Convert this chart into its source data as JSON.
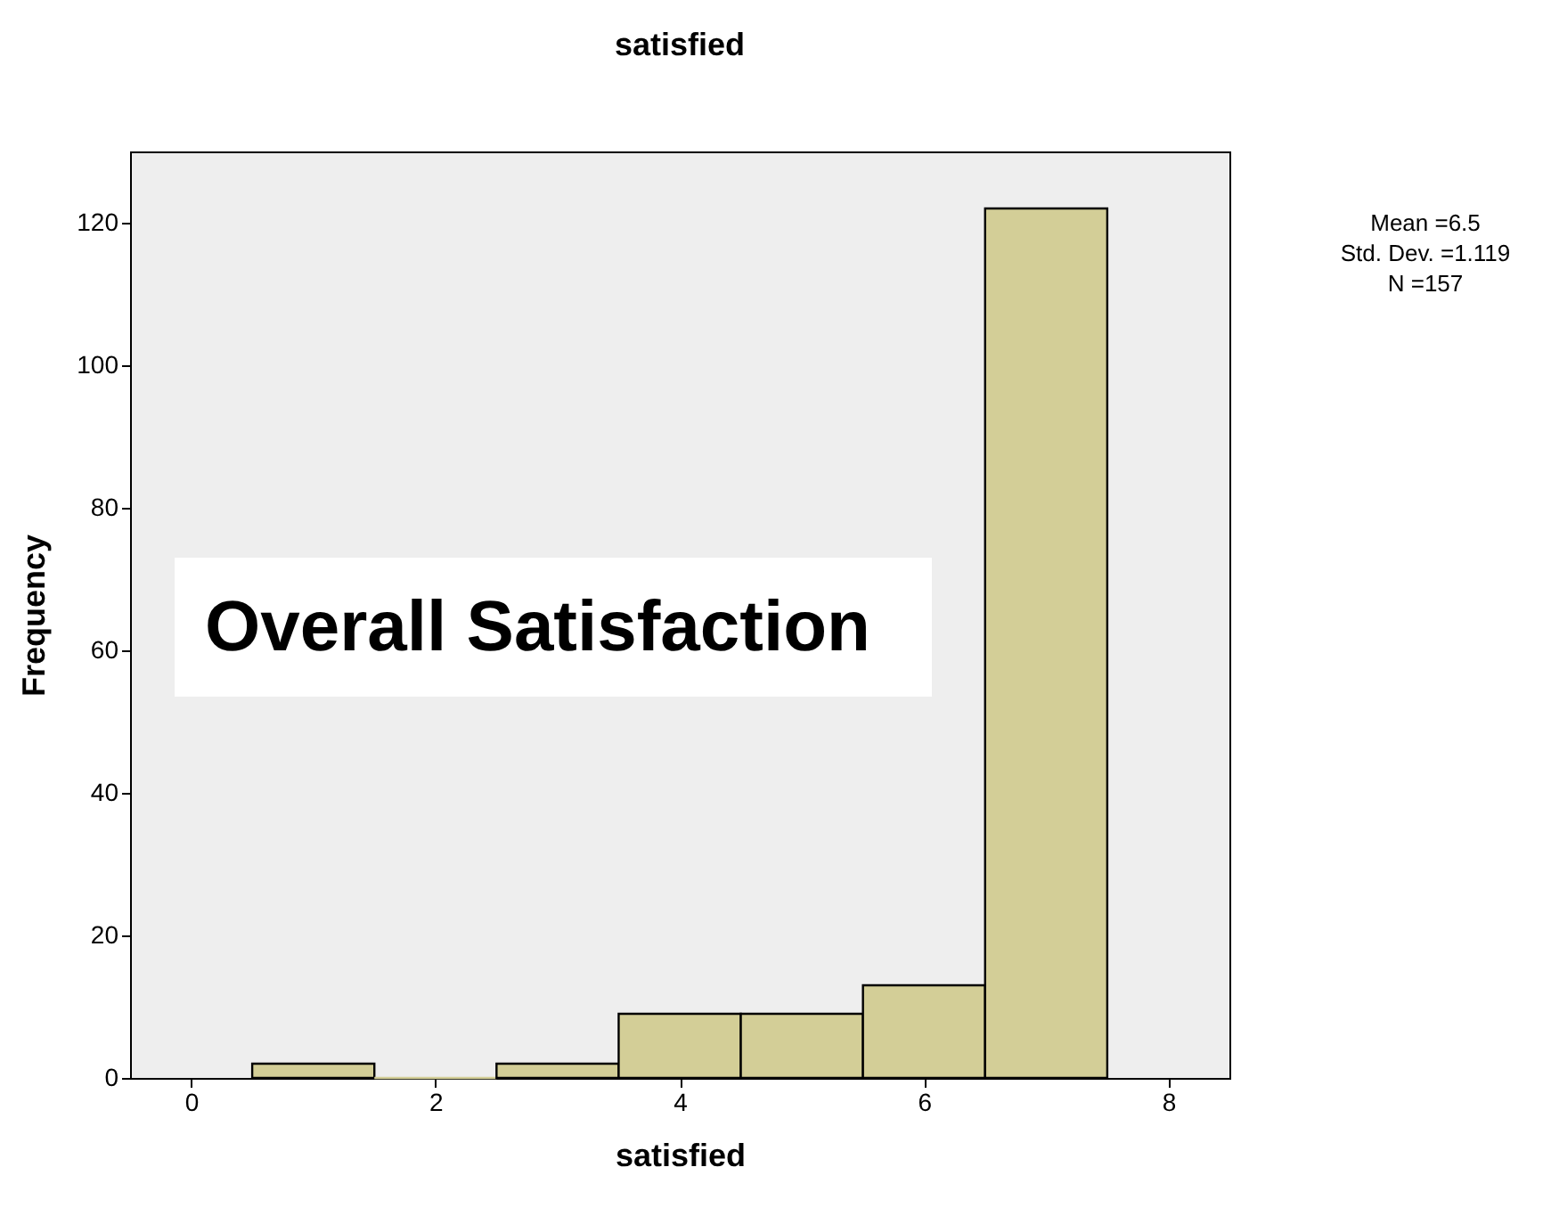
{
  "chart_data": {
    "type": "histogram",
    "title": "satisfied",
    "xlabel": "satisfied",
    "ylabel": "Frequency",
    "bins": [
      0.5,
      1.5,
      2.5,
      3.5,
      4.5,
      5.5,
      6.5,
      7.5
    ],
    "values": [
      2,
      0,
      2,
      9,
      9,
      13,
      122
    ],
    "color": "#d3ce97",
    "xlim": [
      -0.5,
      8.5
    ],
    "xticks": [
      0,
      2,
      4,
      6,
      8
    ],
    "ylim": [
      0,
      130
    ],
    "yticks": [
      0,
      20,
      40,
      60,
      80,
      100,
      120
    ],
    "grid": false,
    "annotations": [
      "Overall Satisfaction",
      "Mean =6.5",
      "Std. Dev. =1.119",
      "N =157"
    ]
  }
}
